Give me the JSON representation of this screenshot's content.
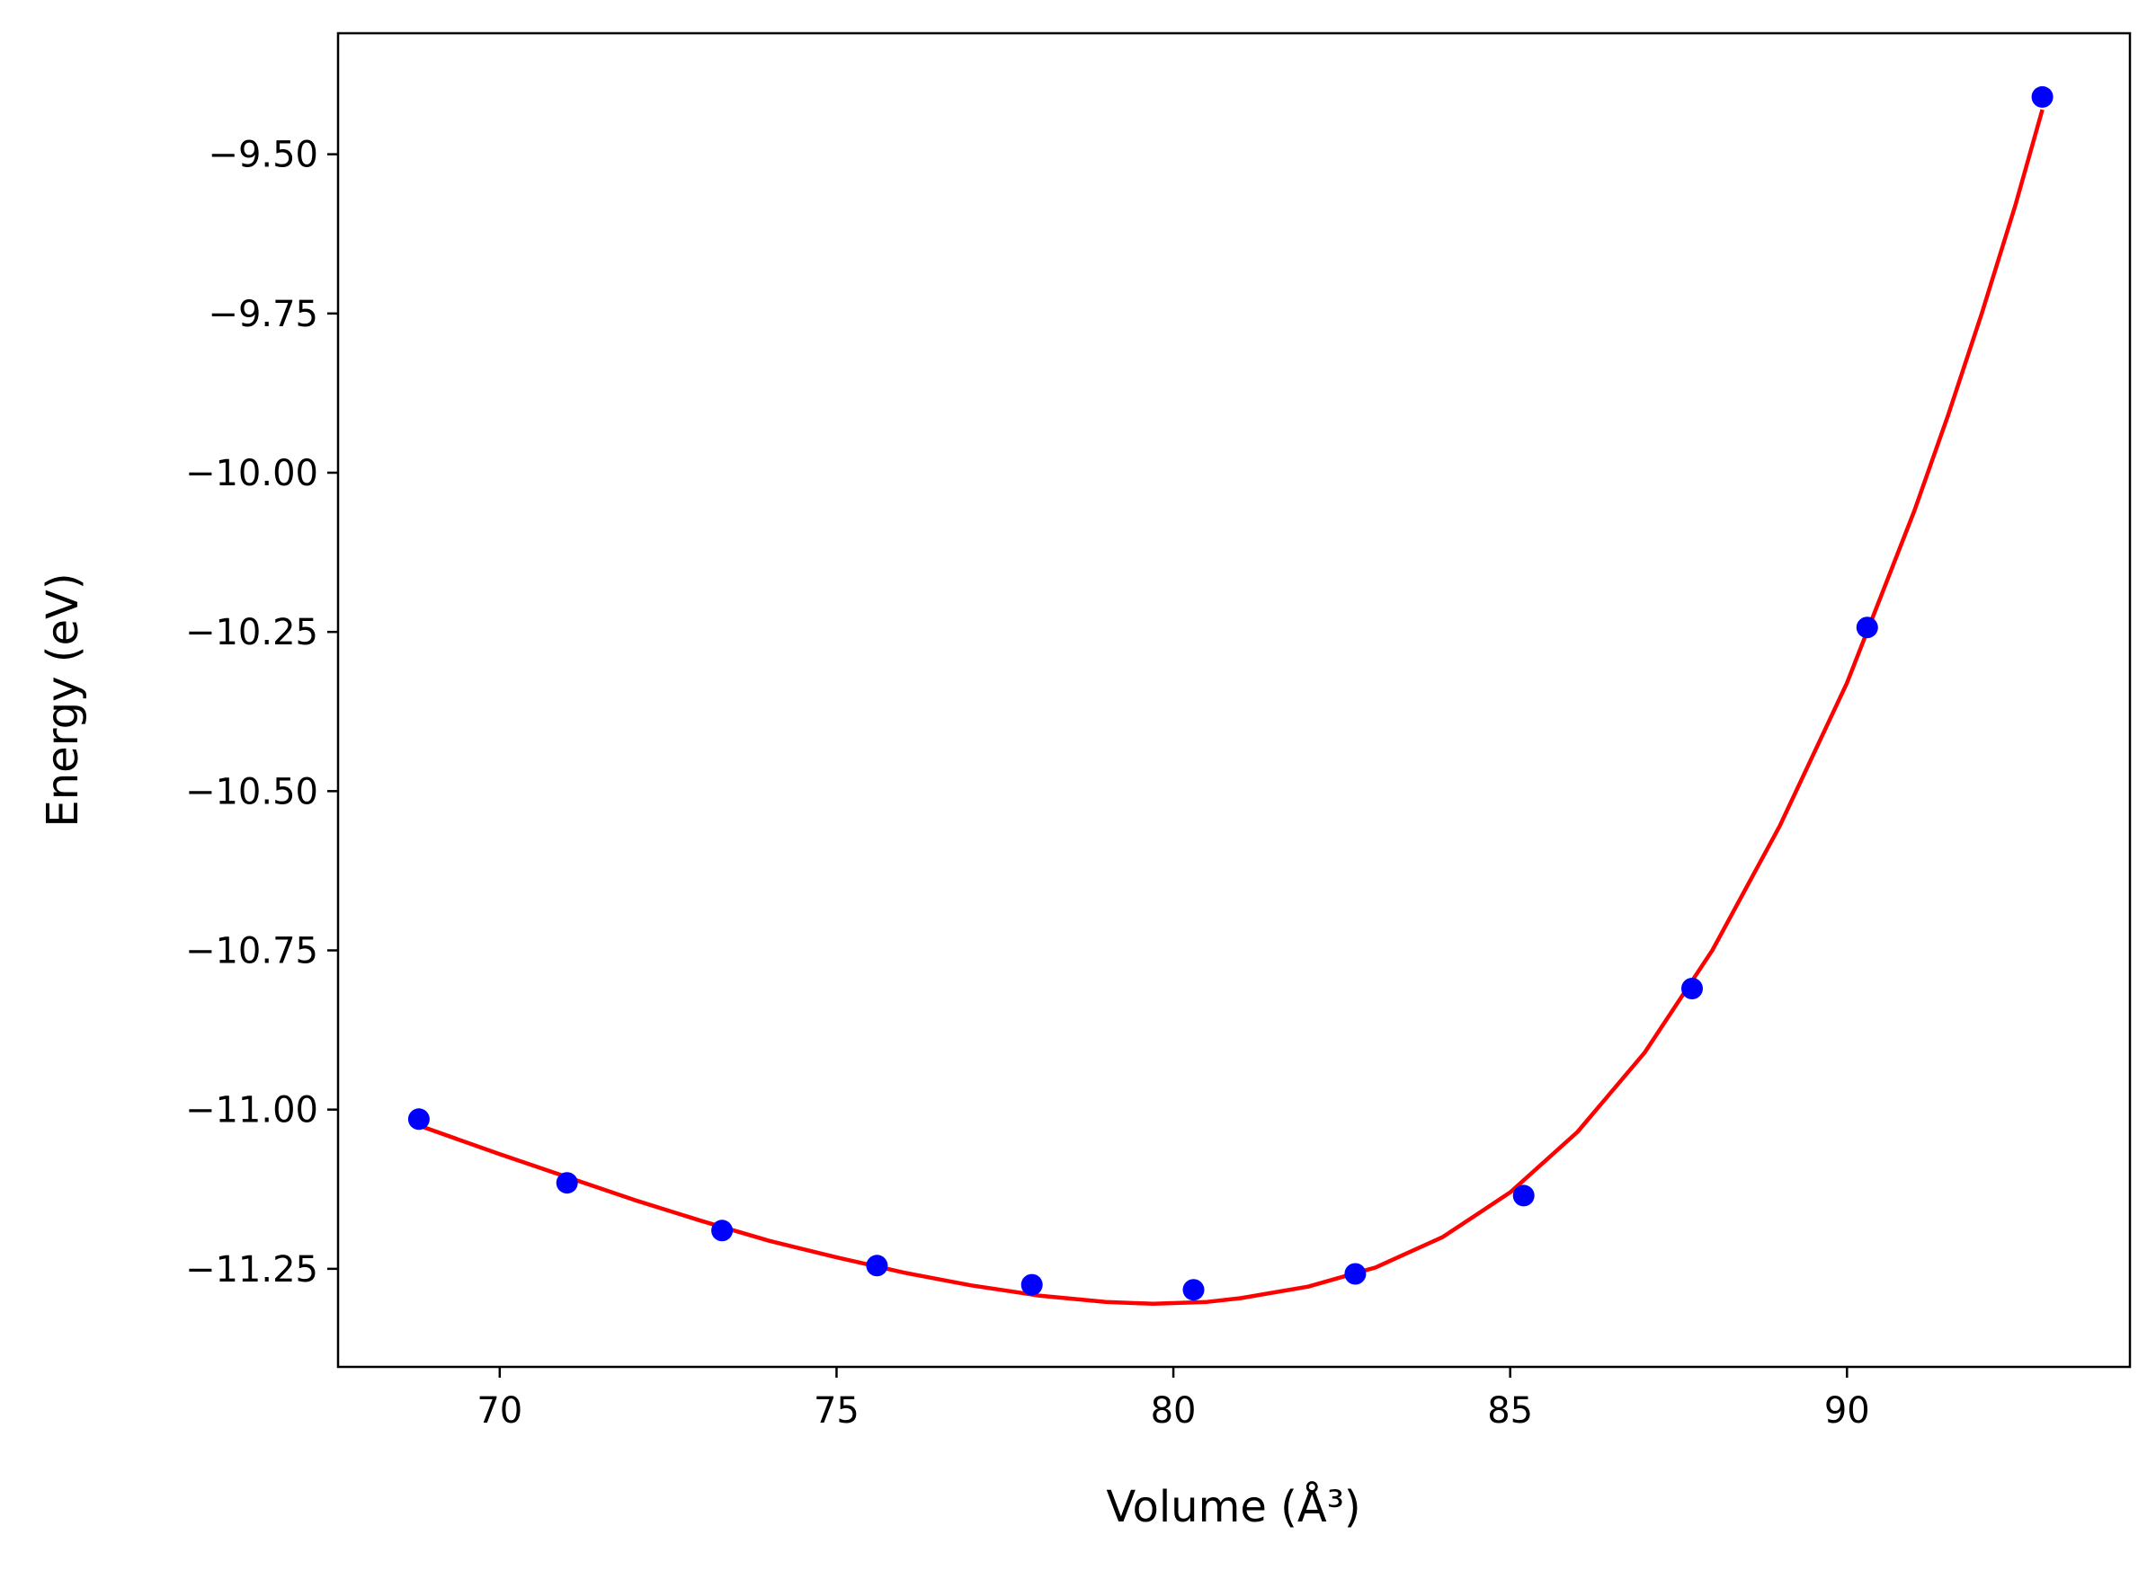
{
  "chart_data": {
    "type": "scatter",
    "title": "",
    "xlabel": "Volume (Å³)",
    "ylabel": "Energy (eV)",
    "xlim": [
      67.6,
      94.2
    ],
    "ylim": [
      -11.404,
      -9.31
    ],
    "x_ticks": [
      70,
      75,
      80,
      85,
      90
    ],
    "x_tick_labels": [
      "70",
      "75",
      "80",
      "85",
      "90"
    ],
    "y_ticks": [
      -9.5,
      -9.75,
      -10.0,
      -10.25,
      -10.5,
      -10.75,
      -11.0,
      -11.25
    ],
    "y_tick_labels": [
      "−9.50",
      "−9.75",
      "−10.00",
      "−10.25",
      "−10.50",
      "−10.75",
      "−11.00",
      "−11.25"
    ],
    "grid": false,
    "series": [
      {
        "kind": "scatter",
        "color": "#0000ff",
        "x": [
          68.8,
          71.0,
          73.3,
          75.6,
          77.9,
          80.3,
          82.7,
          85.2,
          87.7,
          90.3,
          92.9
        ],
        "y": [
          -11.015,
          -11.115,
          -11.19,
          -11.245,
          -11.275,
          -11.283,
          -11.258,
          -11.135,
          -10.81,
          -10.243,
          -9.41
        ]
      },
      {
        "kind": "line",
        "color": "#ff0000",
        "x": [
          68.8,
          70.0,
          71.0,
          72.0,
          73.0,
          74.0,
          75.0,
          76.0,
          77.0,
          78.0,
          79.0,
          79.7,
          80.5,
          81.0,
          82.0,
          83.0,
          84.0,
          85.0,
          86.0,
          87.0,
          88.0,
          89.0,
          90.0,
          90.5,
          91.0,
          91.5,
          92.0,
          92.5,
          92.9
        ],
        "y": [
          -11.025,
          -11.07,
          -11.106,
          -11.142,
          -11.175,
          -11.206,
          -11.232,
          -11.256,
          -11.276,
          -11.292,
          -11.302,
          -11.305,
          -11.302,
          -11.296,
          -11.278,
          -11.248,
          -11.2,
          -11.13,
          -11.035,
          -10.91,
          -10.75,
          -10.555,
          -10.33,
          -10.195,
          -10.06,
          -9.91,
          -9.75,
          -9.58,
          -9.43
        ]
      }
    ]
  }
}
